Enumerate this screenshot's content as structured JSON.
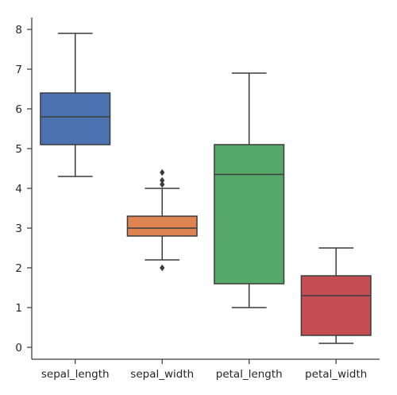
{
  "chart_data": {
    "type": "box",
    "title": "",
    "xlabel": "",
    "ylabel": "",
    "ylim": [
      -0.3,
      8.3
    ],
    "yticks": [
      0,
      1,
      2,
      3,
      4,
      5,
      6,
      7,
      8
    ],
    "grid": false,
    "categories": [
      "sepal_length",
      "sepal_width",
      "petal_length",
      "petal_width"
    ],
    "boxes": [
      {
        "name": "sepal_length",
        "color": "#4c72b0",
        "whisker_low": 4.3,
        "q1": 5.1,
        "median": 5.8,
        "q3": 6.4,
        "whisker_high": 7.9,
        "outliers": []
      },
      {
        "name": "sepal_width",
        "color": "#dd8452",
        "whisker_low": 2.2,
        "q1": 2.8,
        "median": 3.0,
        "q3": 3.3,
        "whisker_high": 4.0,
        "outliers": [
          2.0,
          4.1,
          4.2,
          4.4
        ]
      },
      {
        "name": "petal_length",
        "color": "#55a868",
        "whisker_low": 1.0,
        "q1": 1.6,
        "median": 4.35,
        "q3": 5.1,
        "whisker_high": 6.9,
        "outliers": []
      },
      {
        "name": "petal_width",
        "color": "#c44e52",
        "whisker_low": 0.1,
        "q1": 0.3,
        "median": 1.3,
        "q3": 1.8,
        "whisker_high": 2.5,
        "outliers": []
      }
    ]
  }
}
